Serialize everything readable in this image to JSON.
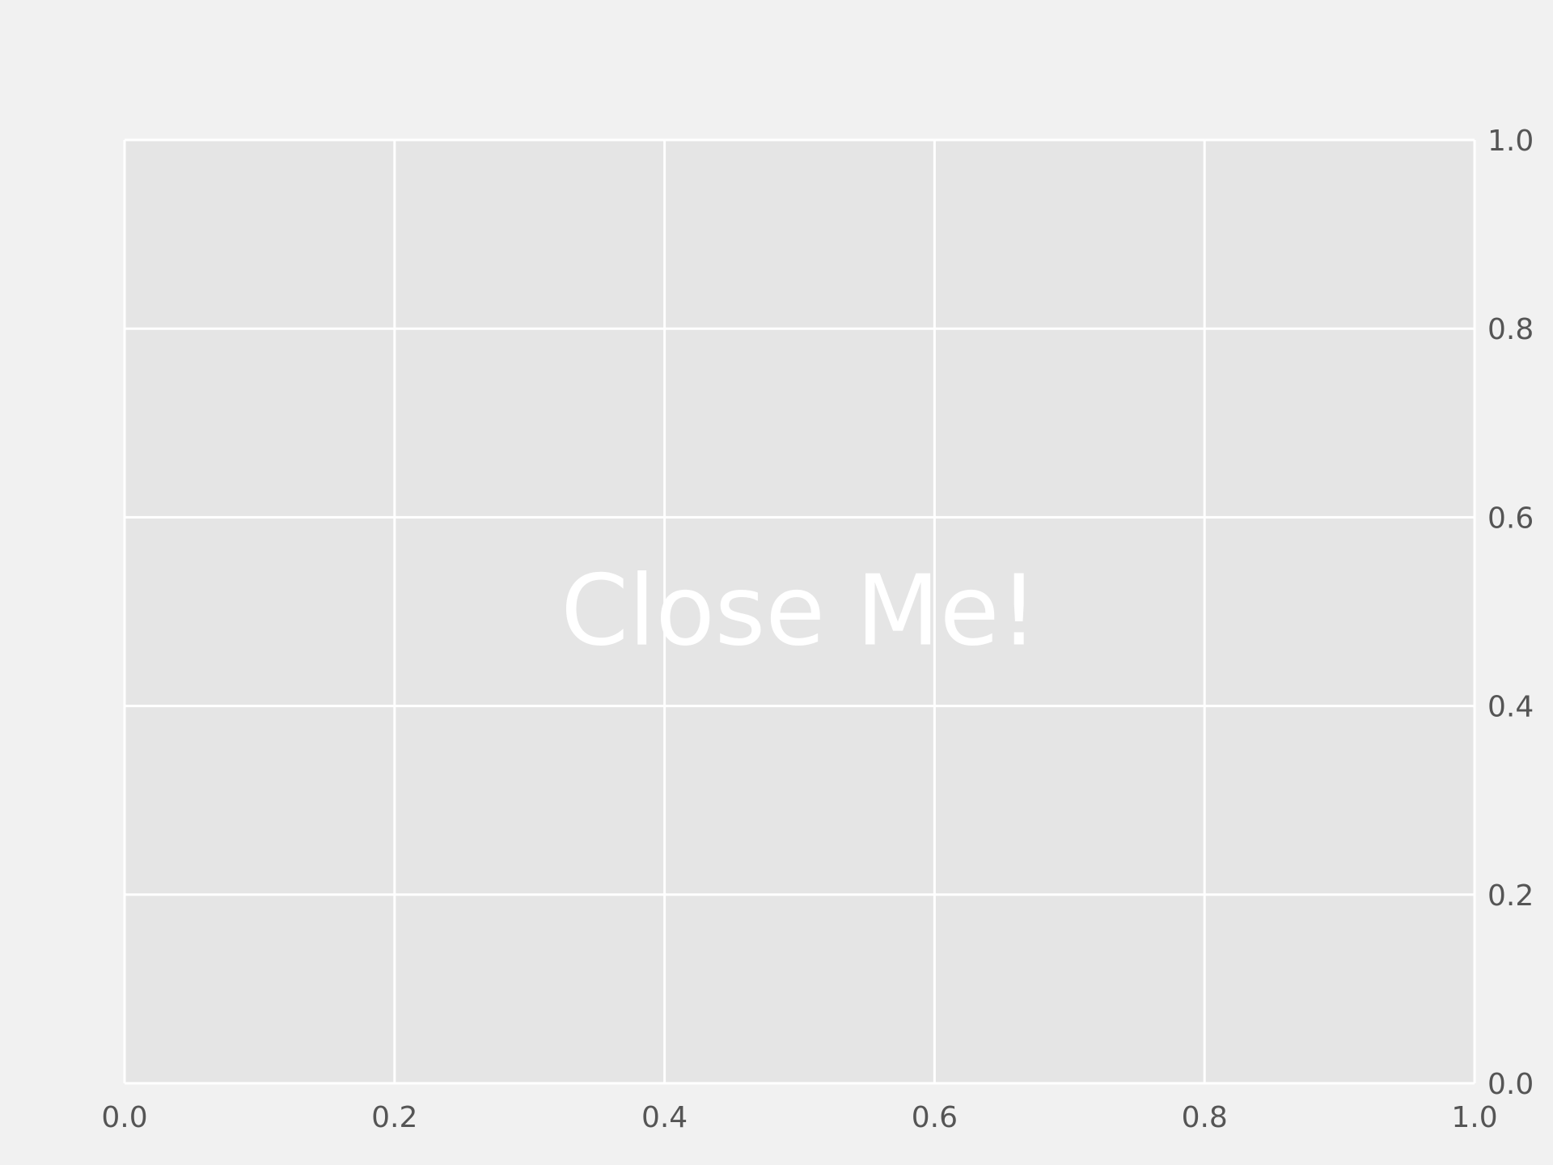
{
  "chart_data": {
    "type": "scatter",
    "title": "",
    "xlabel": "",
    "ylabel": "",
    "xlim": [
      0.0,
      1.0
    ],
    "ylim": [
      0.0,
      1.0
    ],
    "x_ticks": [
      "0.0",
      "0.2",
      "0.4",
      "0.6",
      "0.8",
      "1.0"
    ],
    "y_ticks": [
      "0.0",
      "0.2",
      "0.4",
      "0.6",
      "0.8",
      "1.0"
    ],
    "y_axis_side": "right",
    "grid": true,
    "series": [],
    "annotations": [
      {
        "text": "Close Me!",
        "x": 0.5,
        "y": 0.5
      }
    ]
  },
  "colors": {
    "figure_bg": "#f1f1f1",
    "axes_bg": "#e5e5e5",
    "grid": "#ffffff",
    "tick_text": "#555555",
    "annotation_text": "#ffffff"
  }
}
